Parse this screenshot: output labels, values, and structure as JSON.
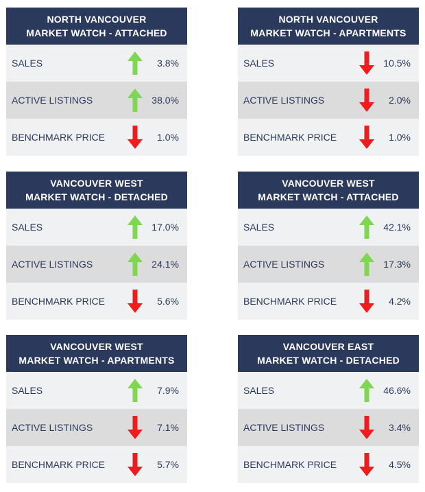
{
  "colors": {
    "header": "#2b3a5c",
    "up": "#7fd650",
    "down": "#ee1c1c"
  },
  "cards": [
    {
      "title1": "NORTH VANCOUVER",
      "title2": "MARKET WATCH - ATTACHED",
      "rows": [
        {
          "label": "SALES",
          "direction": "up",
          "icon": "arrow-up-icon",
          "value": "3.8%"
        },
        {
          "label": "ACTIVE LISTINGS",
          "direction": "up",
          "icon": "arrow-up-icon",
          "value": "38.0%"
        },
        {
          "label": "BENCHMARK PRICE",
          "direction": "down",
          "icon": "arrow-down-icon",
          "value": "1.0%"
        }
      ]
    },
    {
      "title1": "NORTH VANCOUVER",
      "title2": "MARKET WATCH - APARTMENTS",
      "rows": [
        {
          "label": "SALES",
          "direction": "down",
          "icon": "arrow-down-icon",
          "value": "10.5%"
        },
        {
          "label": "ACTIVE LISTINGS",
          "direction": "down",
          "icon": "arrow-down-icon",
          "value": "2.0%"
        },
        {
          "label": "BENCHMARK PRICE",
          "direction": "down",
          "icon": "arrow-down-icon",
          "value": "1.0%"
        }
      ]
    },
    {
      "title1": "VANCOUVER WEST",
      "title2": "MARKET WATCH - DETACHED",
      "rows": [
        {
          "label": "SALES",
          "direction": "up",
          "icon": "arrow-up-icon",
          "value": "17.0%"
        },
        {
          "label": "ACTIVE LISTINGS",
          "direction": "up",
          "icon": "arrow-up-icon",
          "value": "24.1%"
        },
        {
          "label": "BENCHMARK PRICE",
          "direction": "down",
          "icon": "arrow-down-icon",
          "value": "5.6%"
        }
      ]
    },
    {
      "title1": "VANCOUVER WEST",
      "title2": "MARKET WATCH - ATTACHED",
      "rows": [
        {
          "label": "SALES",
          "direction": "up",
          "icon": "arrow-up-icon",
          "value": "42.1%"
        },
        {
          "label": "ACTIVE LISTINGS",
          "direction": "up",
          "icon": "arrow-up-icon",
          "value": "17.3%"
        },
        {
          "label": "BENCHMARK PRICE",
          "direction": "down",
          "icon": "arrow-down-icon",
          "value": "4.2%"
        }
      ]
    },
    {
      "title1": "VANCOUVER WEST",
      "title2": "MARKET WATCH - APARTMENTS",
      "rows": [
        {
          "label": "SALES",
          "direction": "up",
          "icon": "arrow-up-icon",
          "value": "7.9%"
        },
        {
          "label": "ACTIVE LISTINGS",
          "direction": "down",
          "icon": "arrow-down-icon",
          "value": "7.1%"
        },
        {
          "label": "BENCHMARK PRICE",
          "direction": "down",
          "icon": "arrow-down-icon",
          "value": "5.7%"
        }
      ]
    },
    {
      "title1": "VANCOUVER EAST",
      "title2": "MARKET WATCH - DETACHED",
      "rows": [
        {
          "label": "SALES",
          "direction": "up",
          "icon": "arrow-up-icon",
          "value": "46.6%"
        },
        {
          "label": "ACTIVE LISTINGS",
          "direction": "down",
          "icon": "arrow-down-icon",
          "value": "3.4%"
        },
        {
          "label": "BENCHMARK PRICE",
          "direction": "down",
          "icon": "arrow-down-icon",
          "value": "4.5%"
        }
      ]
    }
  ]
}
